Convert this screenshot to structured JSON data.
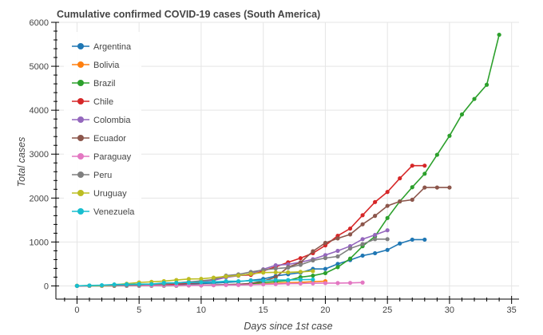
{
  "chart_data": {
    "type": "line",
    "title": "Cumulative confirmed COVID-19 cases (South America)",
    "xlabel": "Days since 1st case",
    "ylabel": "Total cases",
    "xlim": [
      -1.7,
      35.6
    ],
    "ylim": [
      -300,
      6000
    ],
    "x_ticks": [
      0,
      5,
      10,
      15,
      20,
      25,
      30,
      35
    ],
    "y_ticks": [
      0,
      1000,
      2000,
      3000,
      4000,
      5000,
      6000
    ],
    "grid": true,
    "legend_position": "top-left",
    "series": [
      {
        "name": "Argentina",
        "color": "#1f77b4",
        "x": [
          0,
          1,
          2,
          3,
          4,
          5,
          6,
          7,
          8,
          9,
          10,
          11,
          12,
          13,
          14,
          15,
          16,
          17,
          18,
          19,
          20,
          21,
          22,
          23,
          24,
          25,
          26,
          27,
          28
        ],
        "y": [
          1,
          2,
          8,
          12,
          17,
          19,
          21,
          31,
          34,
          45,
          56,
          65,
          79,
          97,
          128,
          158,
          225,
          266,
          301,
          387,
          387,
          502,
          589,
          690,
          745,
          820,
          966,
          1054,
          1054
        ]
      },
      {
        "name": "Bolivia",
        "color": "#ff7f0e",
        "x": [
          0,
          1,
          2,
          3,
          4,
          5,
          6,
          7,
          8,
          9,
          10,
          11,
          12,
          13,
          14,
          15,
          16,
          17,
          18,
          19,
          20
        ],
        "y": [
          2,
          2,
          3,
          3,
          10,
          10,
          11,
          11,
          12,
          15,
          19,
          24,
          27,
          29,
          32,
          43,
          61,
          74,
          81,
          97,
          107
        ]
      },
      {
        "name": "Brazil",
        "color": "#2ca02c",
        "x": [
          0,
          1,
          2,
          3,
          4,
          5,
          6,
          7,
          8,
          9,
          10,
          11,
          12,
          13,
          14,
          15,
          16,
          17,
          18,
          19,
          20,
          21,
          22,
          23,
          24,
          25,
          26,
          27,
          28,
          29,
          30,
          31,
          32,
          33,
          34
        ],
        "y": [
          1,
          1,
          1,
          2,
          2,
          2,
          2,
          3,
          4,
          13,
          13,
          25,
          31,
          38,
          52,
          77,
          98,
          121,
          200,
          234,
          291,
          428,
          621,
          904,
          1128,
          1546,
          1924,
          2247,
          2554,
          2985,
          3417,
          3904,
          4256,
          4579,
          5717
        ]
      },
      {
        "name": "Chile",
        "color": "#d62728",
        "x": [
          0,
          1,
          2,
          3,
          4,
          5,
          6,
          7,
          8,
          9,
          10,
          11,
          12,
          13,
          14,
          15,
          16,
          17,
          18,
          19,
          20,
          21,
          22,
          23,
          24,
          25,
          26,
          27,
          28
        ],
        "y": [
          1,
          4,
          5,
          7,
          13,
          17,
          23,
          33,
          43,
          61,
          75,
          156,
          201,
          238,
          250,
          342,
          434,
          537,
          632,
          746,
          922,
          1142,
          1306,
          1610,
          1909,
          2139,
          2449,
          2738,
          2738
        ]
      },
      {
        "name": "Colombia",
        "color": "#9467bd",
        "x": [
          0,
          1,
          2,
          3,
          4,
          5,
          6,
          7,
          8,
          9,
          10,
          11,
          12,
          13,
          14,
          15,
          16,
          17,
          18,
          19,
          20,
          21,
          22,
          23,
          24,
          25
        ],
        "y": [
          1,
          3,
          9,
          9,
          13,
          22,
          34,
          54,
          65,
          93,
          102,
          128,
          196,
          231,
          277,
          378,
          470,
          491,
          539,
          608,
          702,
          798,
          906,
          1065,
          1161,
          1267
        ]
      },
      {
        "name": "Ecuador",
        "color": "#8c564b",
        "x": [
          0,
          1,
          2,
          3,
          4,
          5,
          6,
          7,
          8,
          9,
          10,
          11,
          12,
          13,
          14,
          15,
          16,
          17,
          18,
          19,
          20,
          21,
          22,
          23,
          24,
          25,
          26,
          27,
          28,
          29,
          30
        ],
        "y": [
          1,
          6,
          7,
          10,
          13,
          13,
          14,
          15,
          15,
          17,
          17,
          17,
          28,
          37,
          58,
          111,
          199,
          426,
          532,
          789,
          981,
          1082,
          1173,
          1403,
          1595,
          1823,
          1924,
          1962,
          2240,
          2240,
          2240
        ]
      },
      {
        "name": "Paraguay",
        "color": "#e377c2",
        "x": [
          0,
          1,
          2,
          3,
          4,
          5,
          6,
          7,
          8,
          9,
          10,
          11,
          12,
          13,
          14,
          15,
          16,
          17,
          18,
          19,
          20,
          21,
          22,
          23
        ],
        "y": [
          1,
          1,
          2,
          5,
          5,
          6,
          6,
          8,
          9,
          11,
          13,
          18,
          22,
          22,
          27,
          37,
          41,
          52,
          56,
          59,
          64,
          65,
          69,
          77
        ]
      },
      {
        "name": "Peru",
        "color": "#7f7f7f",
        "x": [
          0,
          1,
          2,
          3,
          4,
          5,
          6,
          7,
          8,
          9,
          10,
          11,
          12,
          13,
          14,
          15,
          16,
          17,
          18,
          19,
          20,
          21,
          22,
          23,
          24,
          25
        ],
        "y": [
          1,
          7,
          9,
          11,
          17,
          22,
          38,
          43,
          71,
          86,
          117,
          145,
          234,
          263,
          318,
          363,
          395,
          416,
          480,
          580,
          635,
          671,
          852,
          950,
          1065,
          1065
        ]
      },
      {
        "name": "Uruguay",
        "color": "#bcbd22",
        "x": [
          0,
          1,
          2,
          3,
          4,
          5,
          6,
          7,
          8,
          9,
          10,
          11,
          12,
          13,
          14,
          15,
          16,
          17,
          18,
          19
        ],
        "y": [
          4,
          6,
          8,
          29,
          50,
          79,
          94,
          110,
          135,
          158,
          162,
          189,
          217,
          238,
          274,
          304,
          309,
          310,
          320,
          338
        ]
      },
      {
        "name": "Venezuela",
        "color": "#17becf",
        "x": [
          0,
          1,
          2,
          3,
          4,
          5,
          6,
          7,
          8,
          9,
          10,
          11,
          12,
          13,
          14,
          15,
          16,
          17,
          18,
          19
        ],
        "y": [
          2,
          10,
          17,
          33,
          36,
          42,
          42,
          70,
          70,
          77,
          84,
          91,
          107,
          107,
          119,
          119,
          135,
          135,
          143,
          146
        ]
      }
    ]
  }
}
